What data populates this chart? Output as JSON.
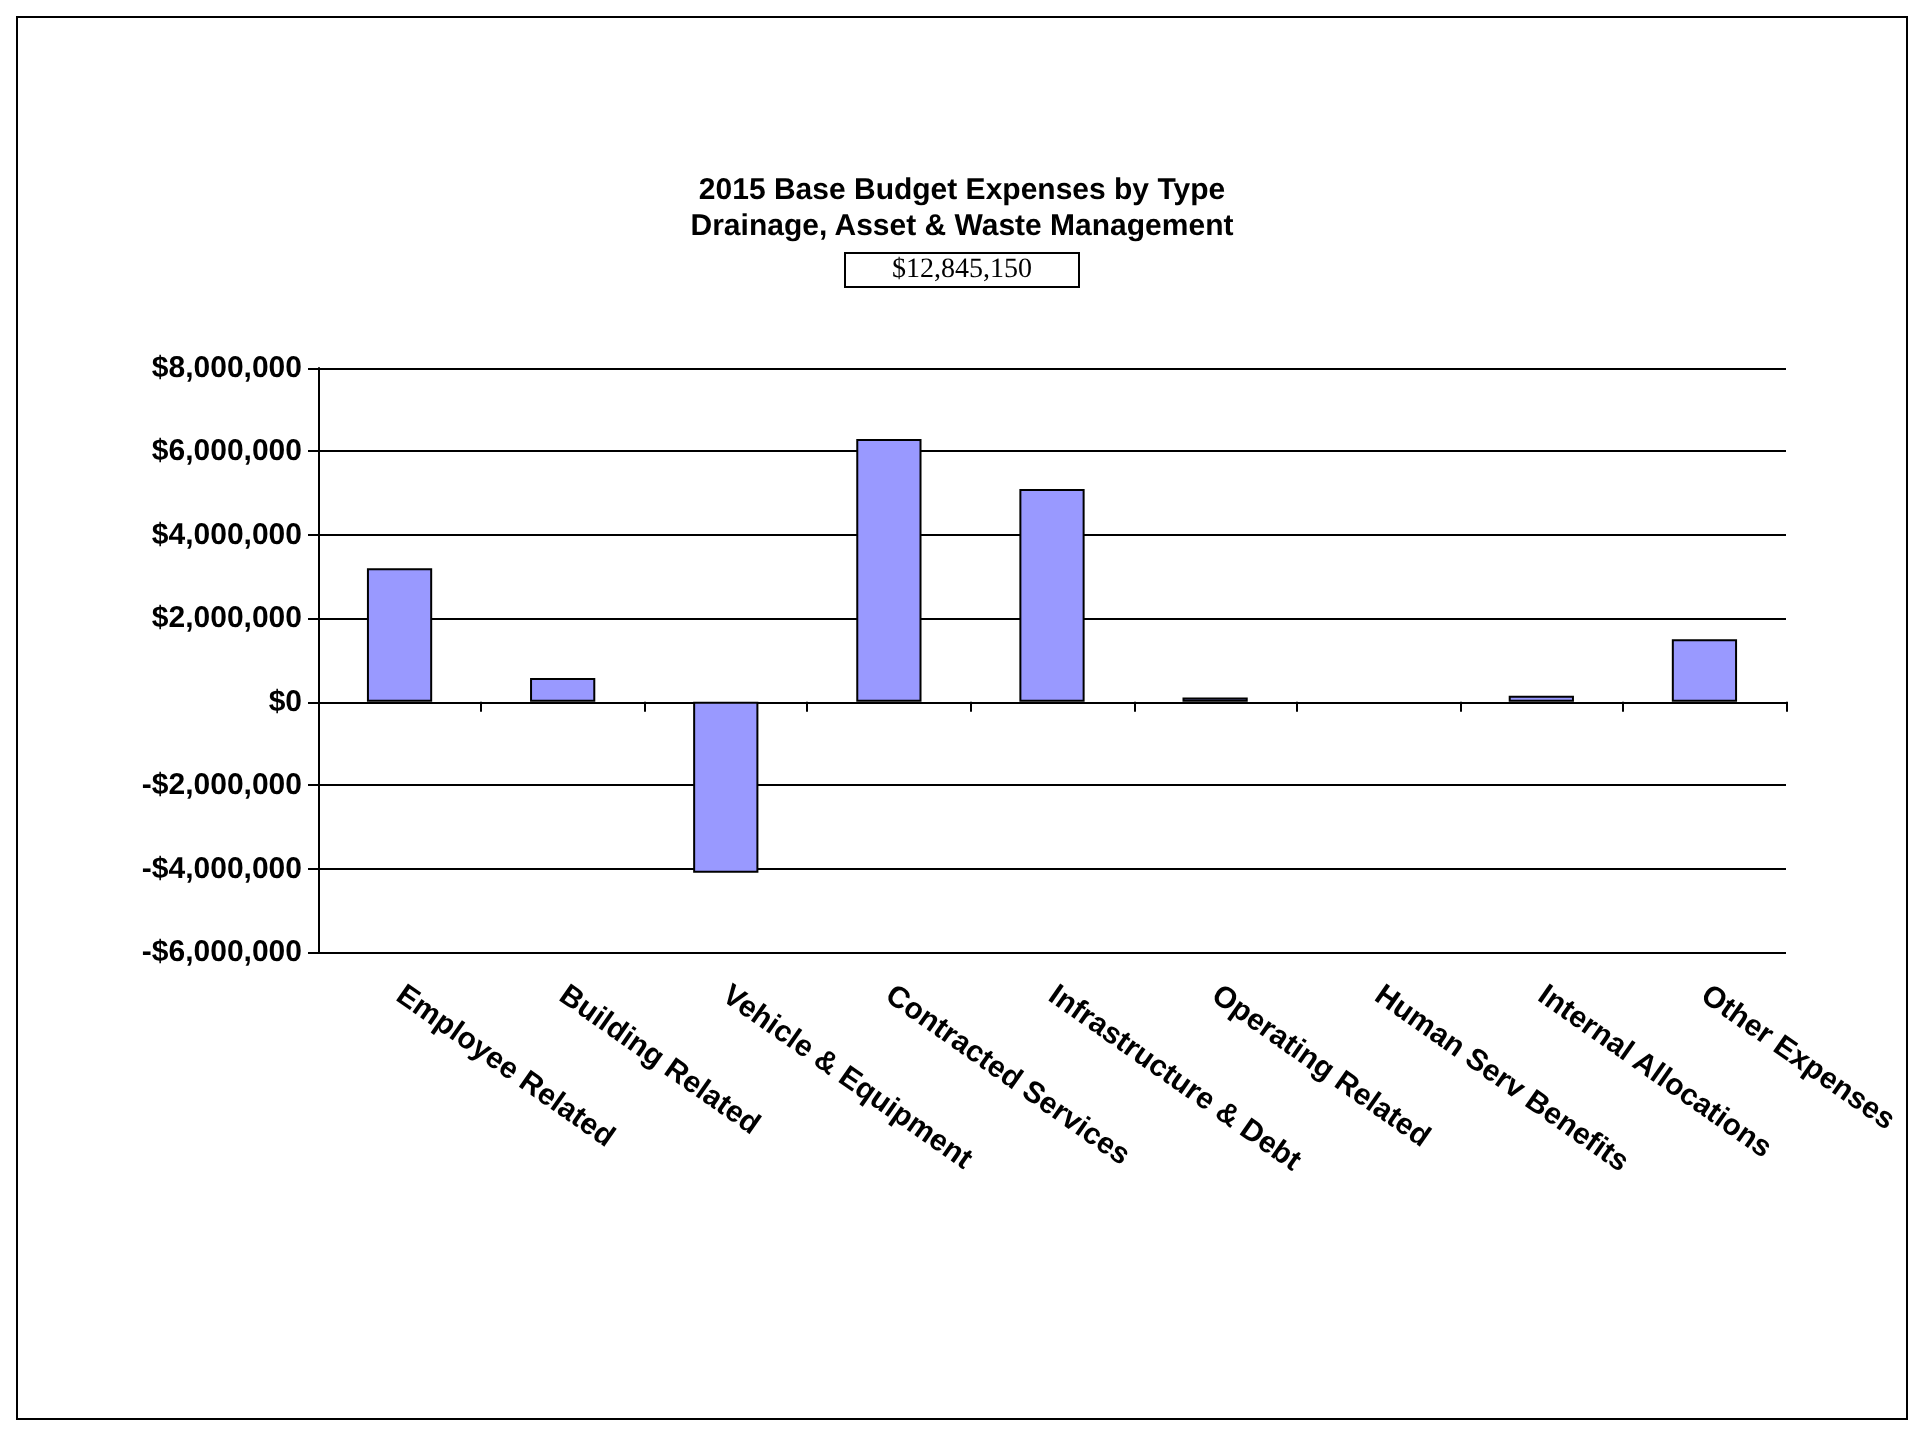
{
  "chart_data": {
    "type": "bar",
    "title": "2015 Base Budget Expenses by Type\nDrainage, Asset & Waste Management",
    "subtitle": "$12,845,150",
    "categories": [
      "Employee Related",
      "Building Related",
      "Vehicle & Equipment",
      "Contracted Services",
      "Infrastructure & Debt",
      "Operating Related",
      "Human Serv Benefits",
      "Internal Allocations",
      "Other Expenses"
    ],
    "values": [
      3200000,
      570000,
      -4100000,
      6300000,
      5100000,
      100000,
      0,
      140000,
      1500000
    ],
    "color": "#9999ff",
    "ylim": [
      -6000000,
      8000000
    ],
    "yticks": [
      {
        "value": -6000000,
        "label": "-$6,000,000"
      },
      {
        "value": -4000000,
        "label": "-$4,000,000"
      },
      {
        "value": -2000000,
        "label": "-$2,000,000"
      },
      {
        "value": 0,
        "label": "$0"
      },
      {
        "value": 2000000,
        "label": "$2,000,000"
      },
      {
        "value": 4000000,
        "label": "$4,000,000"
      },
      {
        "value": 6000000,
        "label": "$6,000,000"
      },
      {
        "value": 8000000,
        "label": "$8,000,000"
      }
    ],
    "grid": "y"
  }
}
